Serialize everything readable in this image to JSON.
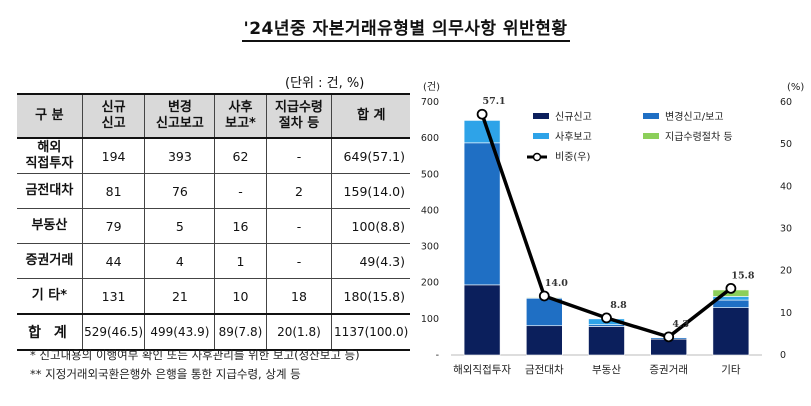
{
  "title": "'24년중 자본거래유형별 의무사항 위반현황",
  "table": {
    "unit": "(단위 : 건, %)",
    "headers": [
      [
        "구 분"
      ],
      [
        "신규",
        "신고"
      ],
      [
        "변경",
        "신고보고"
      ],
      [
        "사후",
        "보고*"
      ],
      [
        "지급수령",
        "절차 등"
      ],
      [
        "합 계"
      ]
    ],
    "rows": [
      {
        "label": [
          "해외",
          "직접투자"
        ],
        "cells": [
          "194",
          "393",
          "62",
          "-",
          "649(57.1)"
        ]
      },
      {
        "label": [
          "금전대차"
        ],
        "cells": [
          "81",
          "76",
          "-",
          "2",
          "159(14.0)"
        ]
      },
      {
        "label": [
          "부동산"
        ],
        "cells": [
          "79",
          "5",
          "16",
          "-",
          "100(8.8)"
        ]
      },
      {
        "label": [
          "증권거래"
        ],
        "cells": [
          "44",
          "4",
          "1",
          "-",
          "49(4.3)"
        ]
      },
      {
        "label": [
          "기 타*"
        ],
        "cells": [
          "131",
          "21",
          "10",
          "18",
          "180(15.8)"
        ]
      }
    ],
    "total": {
      "label": "합 계",
      "cells": [
        "529(46.5)",
        "499(43.9)",
        "89(7.8)",
        "20(1.8)",
        "1137(100.0)"
      ]
    }
  },
  "notes": [
    "* 신고내용의 이행여부 확인 또는 사후관리를 위한 보고(정산보고 등)",
    "** 지정거래외국환은행外 은행을 통한 지급수령, 상계 등"
  ],
  "chart_data": {
    "type": "bar",
    "stacked": true,
    "categories": [
      "해외직접투자",
      "금전대차",
      "부동산",
      "증권거래",
      "기타"
    ],
    "series": [
      {
        "name": "신규신고",
        "values": [
          194,
          81,
          79,
          44,
          131
        ],
        "color": "#0b1f5c"
      },
      {
        "name": "변경신고/보고",
        "values": [
          393,
          76,
          5,
          4,
          21
        ],
        "color": "#1f6fc4"
      },
      {
        "name": "사후보고",
        "values": [
          62,
          0,
          16,
          1,
          10
        ],
        "color": "#2ea3e8"
      },
      {
        "name": "지급수령절차 등",
        "values": [
          0,
          2,
          0,
          0,
          18
        ],
        "color": "#8ccf5a"
      }
    ],
    "line_series": {
      "name": "비중(우)",
      "values": [
        57.1,
        14.0,
        8.8,
        4.3,
        15.8
      ],
      "labels": [
        "57.1",
        "14.0",
        "8.8",
        "4.3",
        "15.8"
      ]
    },
    "y_left": {
      "unit": "(건)",
      "ylim": [
        0,
        700
      ],
      "ticks": [
        "-",
        "100",
        "200",
        "300",
        "400",
        "500",
        "600",
        "700"
      ]
    },
    "y_right": {
      "unit": "(%)",
      "ylim": [
        0,
        60
      ],
      "ticks": [
        "0",
        "10",
        "20",
        "30",
        "40",
        "50",
        "60"
      ]
    },
    "legend_position": "top-right"
  }
}
